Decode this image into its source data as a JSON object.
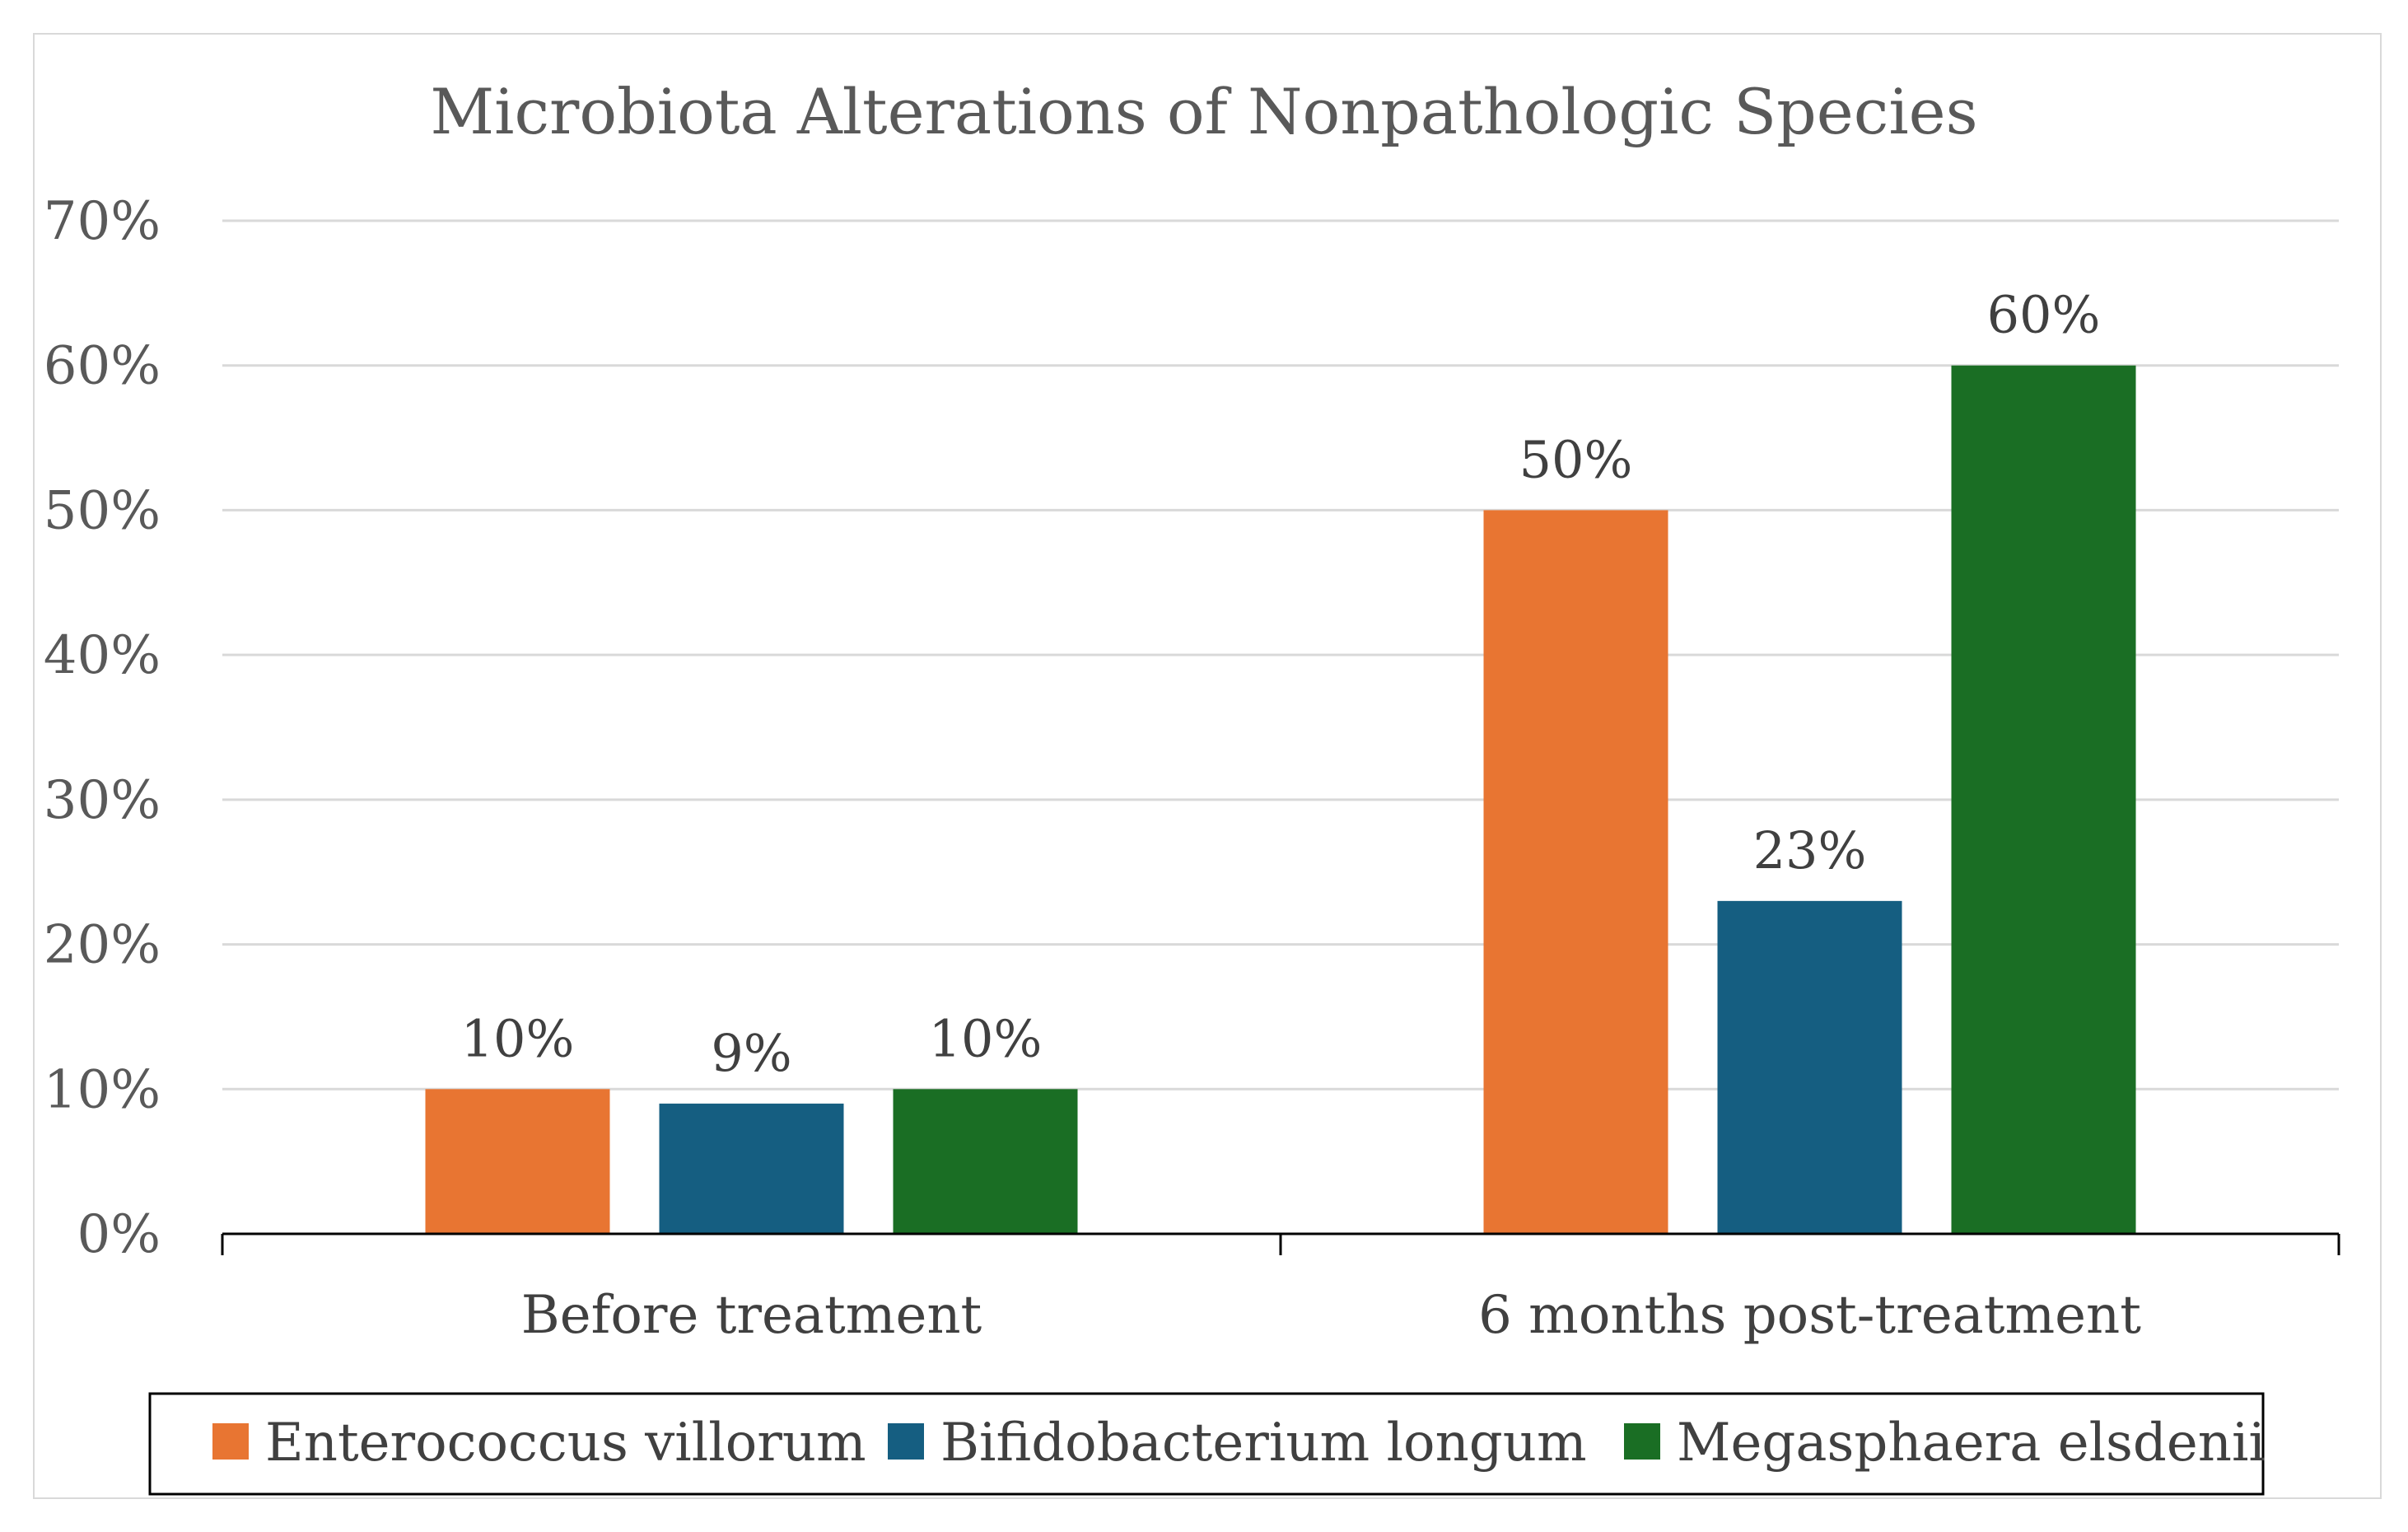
{
  "chart_data": {
    "type": "bar",
    "title": "Microbiota Alterations of Nonpathologic Species",
    "xlabel": "",
    "ylabel": "",
    "categories": [
      "Before treatment",
      "6 months post-treatment"
    ],
    "series": [
      {
        "name": "Enterococcus villorum",
        "values": [
          10,
          50
        ],
        "labels": [
          "10%",
          "50%"
        ],
        "color": "#E87532"
      },
      {
        "name": "Bifidobacterium longum",
        "values": [
          9,
          23
        ],
        "labels": [
          "9%",
          "23%"
        ],
        "color": "#155E81"
      },
      {
        "name": "Megasphaera elsdenii",
        "values": [
          10,
          60
        ],
        "labels": [
          "10%",
          "60%"
        ],
        "color": "#1A6E24"
      }
    ],
    "ylim": [
      0,
      70
    ],
    "yticks": [
      0,
      10,
      20,
      30,
      40,
      50,
      60,
      70
    ],
    "ytick_labels": [
      "0%",
      "10%",
      "20%",
      "30%",
      "40%",
      "50%",
      "60%",
      "70%"
    ],
    "grid": true,
    "gridline_color": "#d9d9d9",
    "axis_color": "#000000",
    "legend_position": "bottom"
  }
}
